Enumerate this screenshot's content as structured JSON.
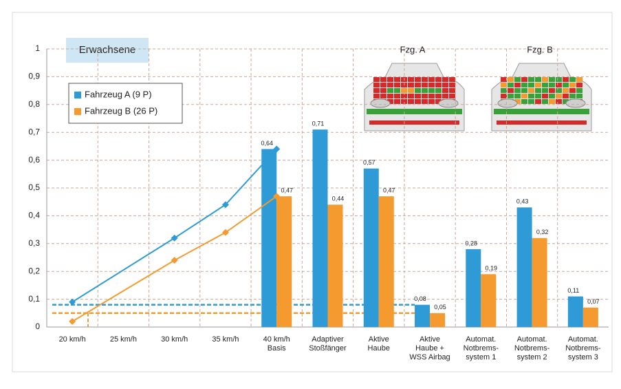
{
  "chart_data": {
    "type": "bar",
    "title": "Erwachsene",
    "annotations": [
      "Fzg. A",
      "Fzg. B"
    ],
    "categories": [
      [
        "20 km/h"
      ],
      [
        "25 km/h"
      ],
      [
        "30 km/h"
      ],
      [
        "35 km/h"
      ],
      [
        "40 km/h",
        "Basis"
      ],
      [
        "Adaptiver",
        "Stoßfänger"
      ],
      [
        "Aktive",
        "Haube"
      ],
      [
        "Aktive",
        "Haube +",
        "WSS Airbag"
      ],
      [
        "Automat.",
        "Notbrems-",
        "system 1"
      ],
      [
        "Automat.",
        "Notbrems-",
        "system 2"
      ],
      [
        "Automat.",
        "Notbrems-",
        "system 3"
      ]
    ],
    "series": [
      {
        "name": "Fahrzeug A (9 P)",
        "color": "#2e9bd6",
        "values": [
          null,
          null,
          null,
          null,
          0.64,
          0.71,
          0.57,
          0.08,
          0.28,
          0.43,
          0.11
        ],
        "value_labels": [
          null,
          null,
          null,
          null,
          "0,64",
          "0,71",
          "0,57",
          "0,08",
          "0,28",
          "0,43",
          "0,11"
        ]
      },
      {
        "name": "Fahrzeug B (26 P)",
        "color": "#f59a2f",
        "values": [
          null,
          null,
          null,
          null,
          0.47,
          0.44,
          0.47,
          0.05,
          0.19,
          0.32,
          0.07
        ],
        "value_labels": [
          null,
          null,
          null,
          null,
          "0,47",
          "0,44",
          "0,47",
          "0,05",
          "0,19",
          "0,32",
          "0,07"
        ]
      }
    ],
    "speed_lines": {
      "x": [
        20,
        30,
        35,
        40
      ],
      "series": [
        {
          "values": [
            0.09,
            0.32,
            0.44,
            0.64
          ]
        },
        {
          "values": [
            0.02,
            0.24,
            0.34,
            0.47
          ]
        }
      ]
    },
    "ylim": [
      0,
      1
    ],
    "yticks": [
      0,
      {
        "value": 0.1,
        "label": "0,1"
      },
      {
        "value": 0.2,
        "label": "0,2"
      },
      {
        "value": 0.3,
        "label": "0,3"
      },
      {
        "value": 0.4,
        "label": "0,4"
      },
      {
        "value": 0.5,
        "label": "0,5"
      },
      {
        "value": 0.6,
        "label": "0,6"
      },
      {
        "value": 0.7,
        "label": "0,7"
      },
      {
        "value": 0.8,
        "label": "0,8"
      },
      {
        "value": 0.9,
        "label": "0,9"
      },
      1
    ],
    "grid": true,
    "legend": "upper-left"
  }
}
